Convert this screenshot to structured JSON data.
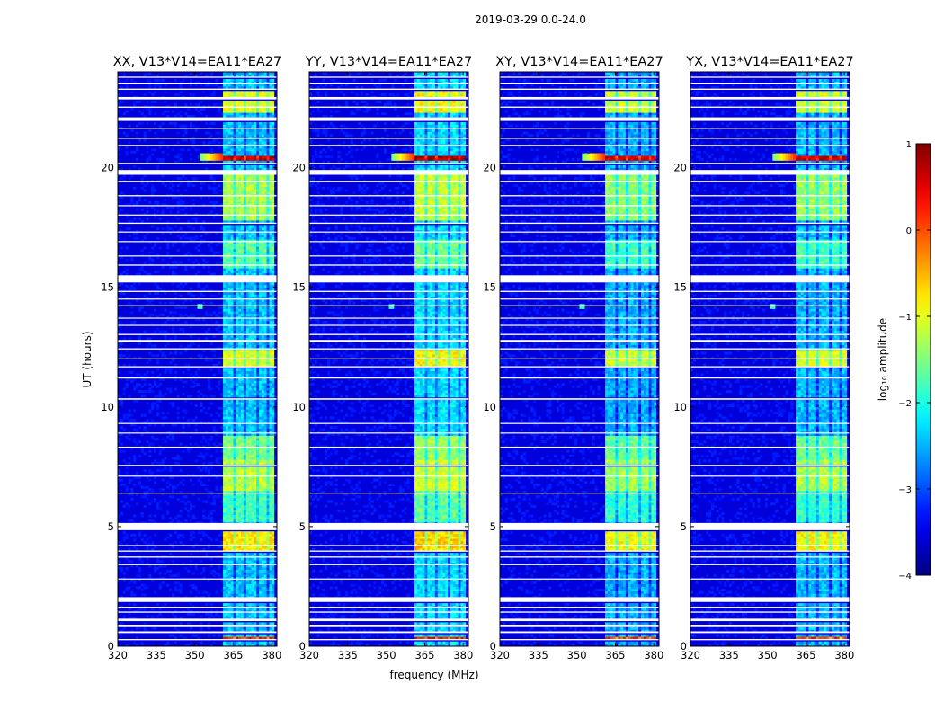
{
  "chart_data": {
    "type": "heatmap",
    "suptitle": "2019-03-29 0.0-24.0",
    "xlabel": "frequency (MHz)",
    "ylabel": "UT (hours)",
    "xlim": [
      320,
      382
    ],
    "ylim": [
      0,
      24
    ],
    "xticks": [
      "320",
      "335",
      "350",
      "365",
      "380"
    ],
    "yticks": [
      "0",
      "5",
      "10",
      "15",
      "20"
    ],
    "panels": [
      {
        "title": "XX, V13*V14=EA11*EA27",
        "ylabel_shown": true,
        "xlabel_shown": false,
        "level_offset": 0.0
      },
      {
        "title": "YY, V13*V14=EA11*EA27",
        "ylabel_shown": false,
        "xlabel_shown": true,
        "level_offset": 0.15
      },
      {
        "title": "XY, V13*V14=EA11*EA27",
        "ylabel_shown": false,
        "xlabel_shown": false,
        "level_offset": -0.1
      },
      {
        "title": "YX, V13*V14=EA11*EA27",
        "ylabel_shown": false,
        "xlabel_shown": false,
        "level_offset": -0.05
      }
    ],
    "rfi_freq_range_mhz": [
      361,
      381
    ],
    "rfi_channels_mhz": [
      [
        361,
        365
      ],
      [
        366,
        369.5
      ],
      [
        370.5,
        374
      ],
      [
        375,
        378
      ],
      [
        379,
        381
      ]
    ],
    "rfi_level_by_hour": [
      {
        "start": 0.3,
        "end": 0.45,
        "level": 0.2
      },
      {
        "start": 4.0,
        "end": 5.0,
        "level": -0.8
      },
      {
        "start": 5.2,
        "end": 6.5,
        "level": -1.8
      },
      {
        "start": 6.5,
        "end": 7.8,
        "level": -1.2
      },
      {
        "start": 7.8,
        "end": 8.8,
        "level": -1.5
      },
      {
        "start": 11.7,
        "end": 12.4,
        "level": -1.0
      },
      {
        "start": 15.8,
        "end": 17.0,
        "level": -1.7
      },
      {
        "start": 17.8,
        "end": 19.8,
        "level": -1.3
      },
      {
        "start": 20.35,
        "end": 20.55,
        "level": 0.7
      },
      {
        "start": 22.3,
        "end": 23.3,
        "level": -1.0
      }
    ],
    "flagged_hours": [
      [
        0.25,
        0.3
      ],
      [
        0.55,
        0.62
      ],
      [
        0.8,
        0.9
      ],
      [
        1.05,
        1.15
      ],
      [
        1.4,
        1.45
      ],
      [
        1.6,
        1.65
      ],
      [
        1.85,
        2.05
      ],
      [
        2.8,
        2.83
      ],
      [
        3.4,
        3.43
      ],
      [
        3.7,
        3.75
      ],
      [
        3.95,
        4.0
      ],
      [
        4.2,
        4.23
      ],
      [
        4.85,
        5.15
      ],
      [
        6.4,
        6.42
      ],
      [
        7.1,
        7.13
      ],
      [
        7.55,
        7.58
      ],
      [
        8.3,
        8.34
      ],
      [
        8.9,
        8.93
      ],
      [
        9.3,
        9.33
      ],
      [
        10.3,
        10.36
      ],
      [
        11.2,
        11.23
      ],
      [
        11.65,
        11.7
      ],
      [
        12.0,
        12.03
      ],
      [
        12.4,
        12.45
      ],
      [
        12.7,
        12.8
      ],
      [
        13.0,
        13.05
      ],
      [
        13.4,
        13.43
      ],
      [
        13.7,
        13.73
      ],
      [
        14.2,
        14.25
      ],
      [
        14.5,
        14.53
      ],
      [
        14.8,
        14.85
      ],
      [
        15.2,
        15.5
      ],
      [
        15.9,
        15.95
      ],
      [
        16.3,
        16.33
      ],
      [
        16.9,
        16.93
      ],
      [
        17.3,
        17.33
      ],
      [
        17.65,
        17.7
      ],
      [
        18.0,
        18.04
      ],
      [
        18.4,
        18.43
      ],
      [
        18.8,
        18.85
      ],
      [
        19.4,
        19.45
      ],
      [
        19.7,
        19.9
      ],
      [
        20.15,
        20.2
      ],
      [
        20.9,
        20.95
      ],
      [
        21.2,
        21.25
      ],
      [
        21.6,
        21.65
      ],
      [
        21.95,
        22.1
      ],
      [
        22.5,
        22.55
      ],
      [
        22.85,
        22.95
      ],
      [
        23.25,
        23.3
      ],
      [
        23.5,
        23.55
      ],
      [
        23.75,
        23.8
      ]
    ],
    "narrow_rfi": {
      "freq_mhz": 352,
      "hour": 14.2,
      "level": -1.8
    },
    "colorbar": {
      "label": "log₁₀ amplitude",
      "range": [
        -4,
        1
      ],
      "ticks": [
        "1",
        "0",
        "−1",
        "−2",
        "−3",
        "−4"
      ],
      "colormap": "jet"
    }
  }
}
